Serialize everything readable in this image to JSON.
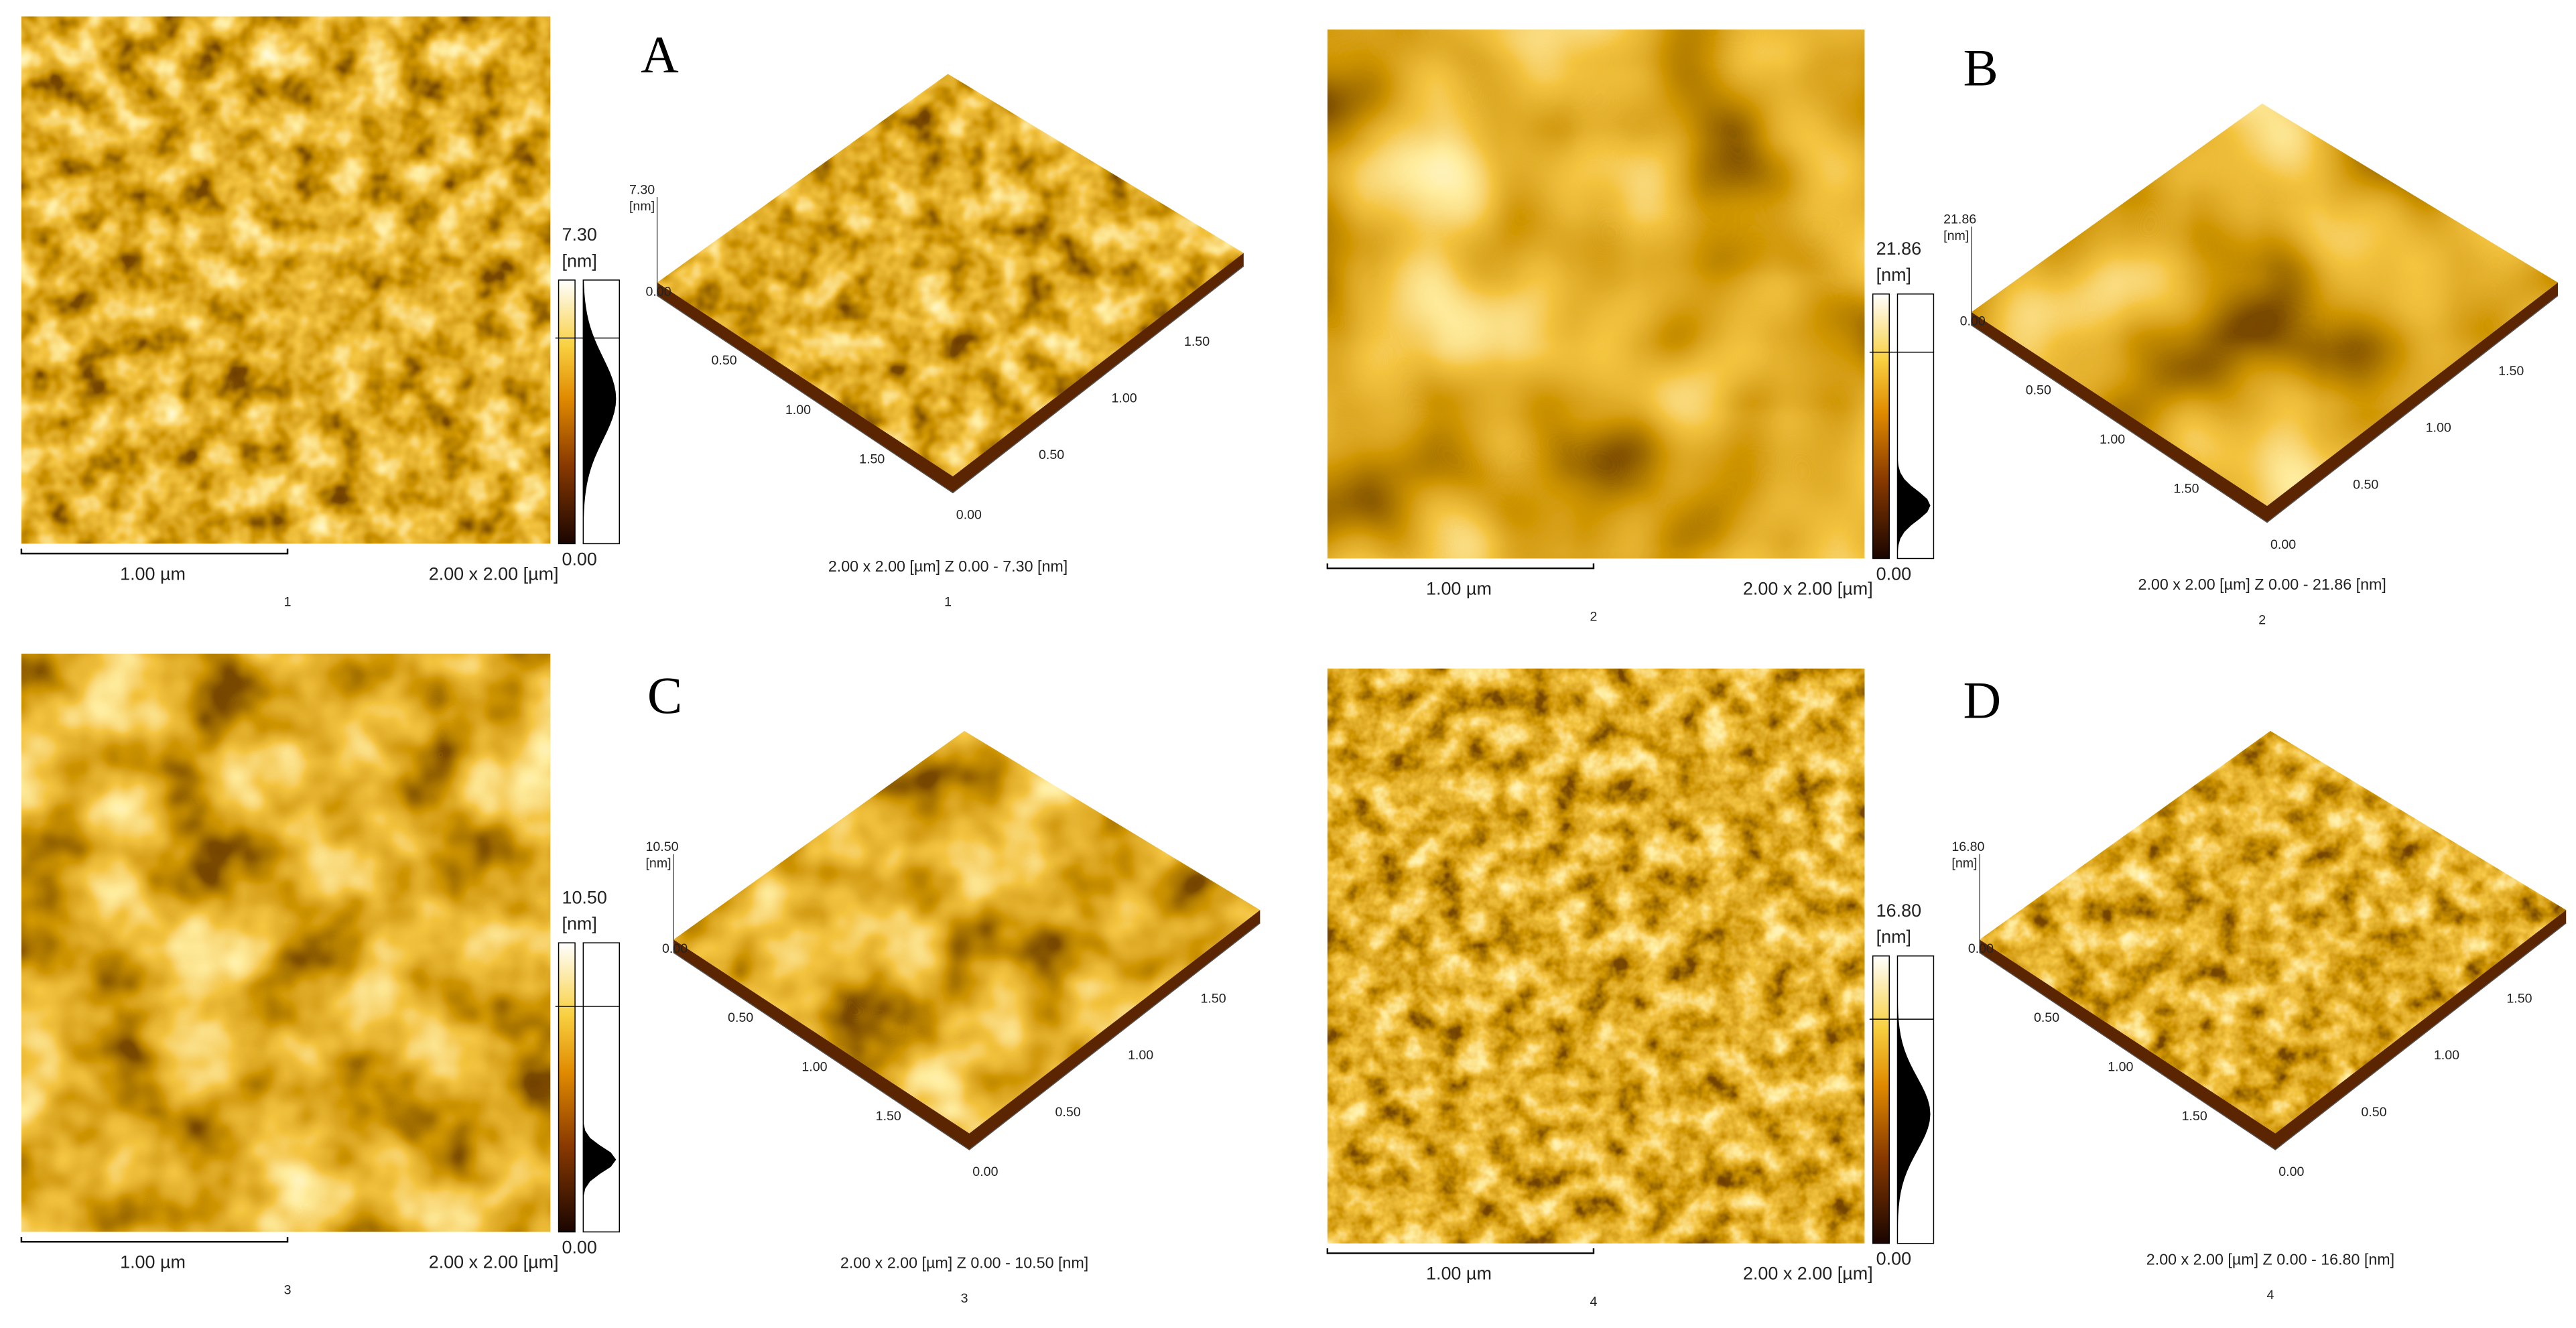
{
  "panels": [
    {
      "letter": "A",
      "image": {
        "scale_bar": "1.00 µm",
        "size": "2.00 x 2.00 [µm]",
        "index": "1"
      },
      "colorbar": {
        "max": "7.30",
        "unit": "[nm]",
        "min": "0.00"
      },
      "surface": {
        "z_max": "7.30",
        "z_unit": "[nm]",
        "z_min": "0.00",
        "left_ticks": [
          "0.50",
          "1.00",
          "1.50"
        ],
        "corner": "0.00",
        "right_ticks": [
          "0.50",
          "1.00",
          "1.50"
        ],
        "caption": "2.00 x 2.00 [µm]   Z  0.00  -  7.30 [nm]",
        "index": "1"
      }
    },
    {
      "letter": "B",
      "image": {
        "scale_bar": "1.00 µm",
        "size": "2.00 x 2.00 [µm]",
        "index": "2"
      },
      "colorbar": {
        "max": "21.86",
        "unit": "[nm]",
        "min": "0.00"
      },
      "surface": {
        "z_max": "21.86",
        "z_unit": "[nm]",
        "z_min": "0.00",
        "left_ticks": [
          "0.50",
          "1.00",
          "1.50"
        ],
        "corner": "0.00",
        "right_ticks": [
          "0.50",
          "1.00",
          "1.50"
        ],
        "caption": "2.00 x 2.00 [µm]   Z  0.00  -  21.86 [nm]",
        "index": "2"
      }
    },
    {
      "letter": "C",
      "image": {
        "scale_bar": "1.00 µm",
        "size": "2.00 x 2.00 [µm]",
        "index": "3"
      },
      "colorbar": {
        "max": "10.50",
        "unit": "[nm]",
        "min": "0.00"
      },
      "surface": {
        "z_max": "10.50",
        "z_unit": "[nm]",
        "z_min": "0.00",
        "left_ticks": [
          "0.50",
          "1.00",
          "1.50"
        ],
        "corner": "0.00",
        "right_ticks": [
          "0.50",
          "1.00",
          "1.50"
        ],
        "caption": "2.00 x 2.00 [µm]   Z  0.00  -  10.50 [nm]",
        "index": "3"
      }
    },
    {
      "letter": "D",
      "image": {
        "scale_bar": "1.00 µm",
        "size": "2.00 x 2.00 [µm]",
        "index": "4"
      },
      "colorbar": {
        "max": "16.80",
        "unit": "[nm]",
        "min": "0.00"
      },
      "surface": {
        "z_max": "16.80",
        "z_unit": "[nm]",
        "z_min": "0.00",
        "left_ticks": [
          "0.50",
          "1.00",
          "1.50"
        ],
        "corner": "0.00",
        "right_ticks": [
          "0.50",
          "1.00",
          "1.50"
        ],
        "caption": "2.00 x 2.00 [µm]   Z  0.00  -  16.80 [nm]",
        "index": "4"
      }
    }
  ]
}
